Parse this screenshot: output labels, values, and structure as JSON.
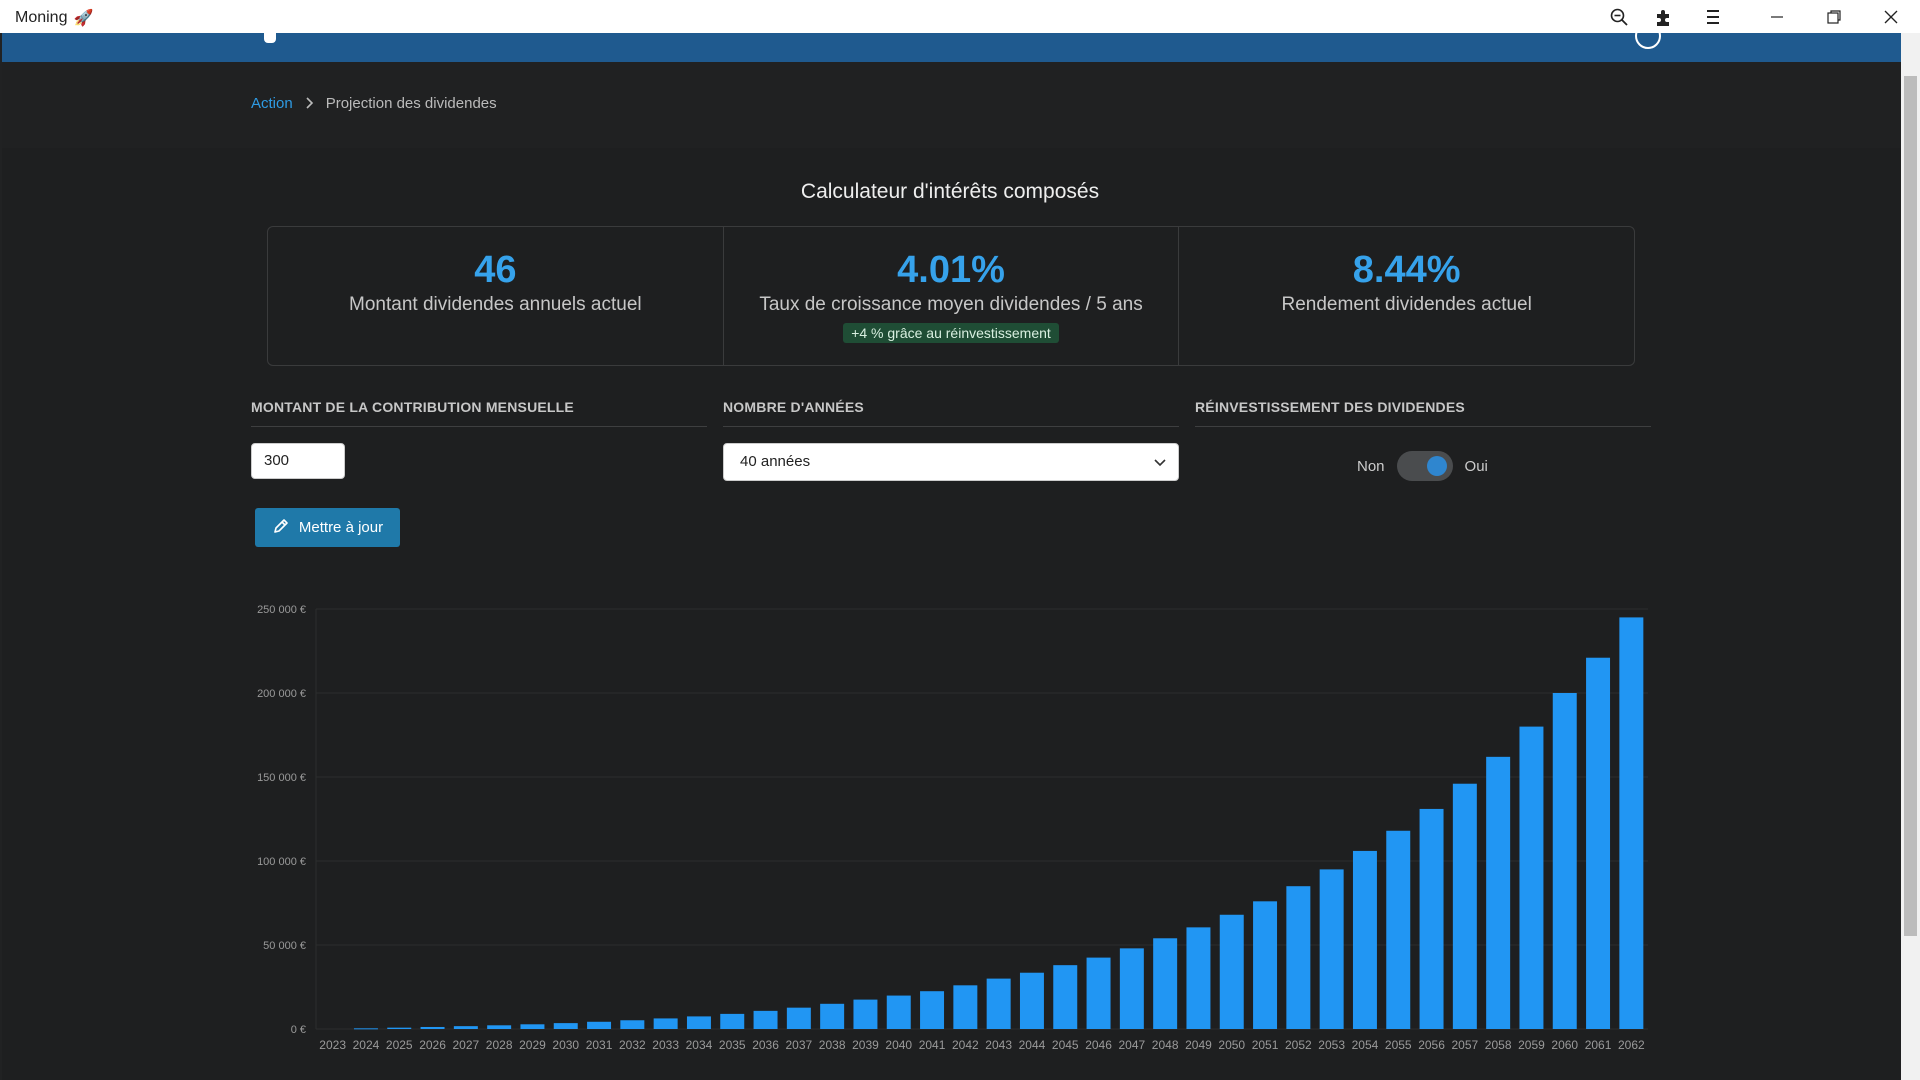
{
  "window": {
    "title": "Moning",
    "title_emoji": "🚀"
  },
  "breadcrumb": {
    "link": "Action",
    "current": "Projection des dividendes"
  },
  "calculator": {
    "title": "Calculateur d'intérêts composés"
  },
  "stats": [
    {
      "value": "46",
      "label": "Montant dividendes annuels actuel"
    },
    {
      "value": "4.01%",
      "label": "Taux de croissance moyen dividendes / 5 ans",
      "badge": "+4 % grâce au réinvestissement"
    },
    {
      "value": "8.44%",
      "label": "Rendement dividendes actuel"
    }
  ],
  "form": {
    "contribution_heading": "MONTANT DE LA CONTRIBUTION MENSUELLE",
    "contribution_value": "300",
    "years_heading": "NOMBRE D'ANNÉES",
    "years_value": "40 années",
    "reinvest_heading": "RÉINVESTISSEMENT DES DIVIDENDES",
    "toggle_off": "Non",
    "toggle_on": "Oui",
    "toggle_state": true,
    "update_button": "Mettre à jour"
  },
  "colors": {
    "accent": "#36a2eb",
    "bar": "#2196f3",
    "button": "#1f79a9",
    "badge_bg": "#1f4d35"
  },
  "chart_data": {
    "type": "bar",
    "categories": [
      "2023",
      "2024",
      "2025",
      "2026",
      "2027",
      "2028",
      "2029",
      "2030",
      "2031",
      "2032",
      "2033",
      "2034",
      "2035",
      "2036",
      "2037",
      "2038",
      "2039",
      "2040",
      "2041",
      "2042",
      "2043",
      "2044",
      "2045",
      "2046",
      "2047",
      "2048",
      "2049",
      "2050",
      "2051",
      "2052",
      "2053",
      "2054",
      "2055",
      "2056",
      "2057",
      "2058",
      "2059",
      "2060",
      "2061",
      "2062"
    ],
    "values": [
      0,
      400,
      800,
      1200,
      1700,
      2200,
      2800,
      3500,
      4300,
      5200,
      6300,
      7500,
      9000,
      10800,
      12700,
      15000,
      17500,
      19900,
      22500,
      26000,
      30000,
      33500,
      38000,
      42500,
      48000,
      54000,
      60500,
      68000,
      76000,
      85000,
      95000,
      106000,
      118000,
      131000,
      146000,
      162000,
      180000,
      200000,
      221000,
      245000
    ],
    "yticks": [
      "0 €",
      "50 000 €",
      "100 000 €",
      "150 000 €",
      "200 000 €",
      "250 000 €"
    ],
    "ylim": [
      0,
      250000
    ],
    "grid": true,
    "title": "",
    "xlabel": "",
    "ylabel": ""
  }
}
